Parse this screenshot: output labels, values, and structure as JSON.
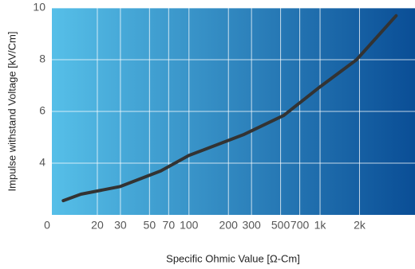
{
  "chart_data": {
    "type": "line",
    "x_label": "Specific Ohmic Value [Ω-Cm]",
    "y_label": "Impulse withstand Voltage [kV/Cm]",
    "x_origin_label": "0",
    "x_scale": "log",
    "xlim": [
      9,
      5300
    ],
    "ylim": [
      2,
      10
    ],
    "xticks": [
      20,
      30,
      50,
      70,
      100,
      200,
      300,
      500,
      700,
      {
        "value": 1000,
        "label": "1k"
      },
      {
        "value": 2000,
        "label": "2k"
      }
    ],
    "yticks": [
      4,
      6,
      8,
      10
    ],
    "grid": true,
    "background_gradient": [
      "#56bfe8",
      "#0a4e96"
    ],
    "series": [
      {
        "color": "#333333",
        "x": [
          11,
          15,
          30,
          61,
          100,
          260,
          530,
          1000,
          1900,
          3800
        ],
        "values": [
          2.55,
          2.8,
          3.1,
          3.7,
          4.3,
          5.1,
          5.85,
          6.95,
          8.0,
          9.7
        ]
      }
    ]
  }
}
